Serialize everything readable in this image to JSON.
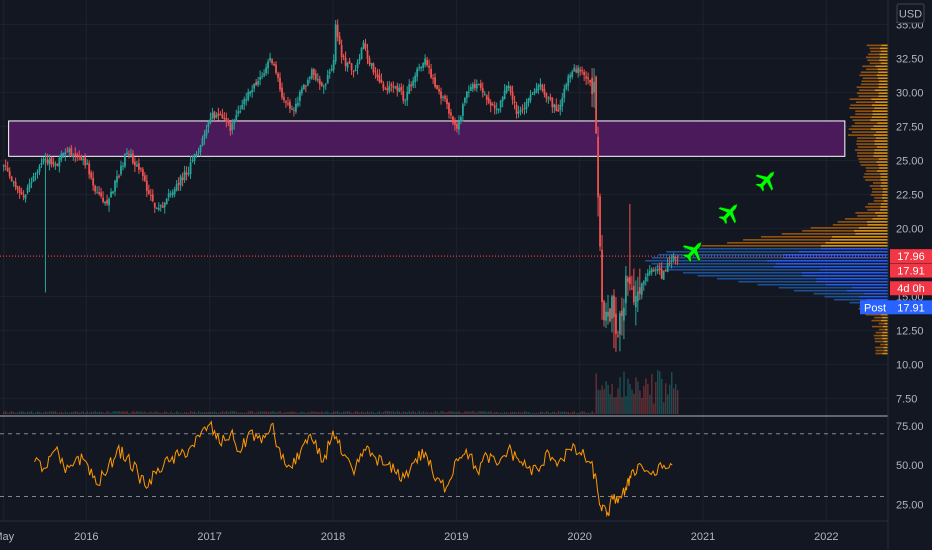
{
  "chart_data": [
    {
      "type": "candlestick",
      "currency": "USD",
      "ylim": [
        6.5,
        36.5
      ],
      "y_ticks": [
        "35.00",
        "32.50",
        "30.00",
        "27.50",
        "25.00",
        "22.50",
        "20.00",
        "15.00",
        "12.50",
        "10.00",
        "7.50"
      ],
      "x_ticks": [
        "May",
        "2016",
        "2017",
        "2018",
        "2019",
        "2020",
        "2021",
        "2022"
      ],
      "x_tick_years": [
        2015.33,
        2016.0,
        2017.0,
        2018.0,
        2019.0,
        2020.0,
        2021.0,
        2022.0
      ],
      "xlim": [
        2015.3,
        2022.5
      ],
      "price_path": [
        [
          2015.33,
          24.6
        ],
        [
          2015.42,
          23.0
        ],
        [
          2015.5,
          22.3
        ],
        [
          2015.58,
          24.0
        ],
        [
          2015.67,
          25.2
        ],
        [
          2015.75,
          24.5
        ],
        [
          2015.83,
          25.8
        ],
        [
          2015.92,
          25.4
        ],
        [
          2016.0,
          24.8
        ],
        [
          2016.08,
          22.5
        ],
        [
          2016.17,
          21.8
        ],
        [
          2016.25,
          23.8
        ],
        [
          2016.33,
          25.6
        ],
        [
          2016.42,
          24.6
        ],
        [
          2016.5,
          22.8
        ],
        [
          2016.58,
          21.3
        ],
        [
          2016.67,
          22.4
        ],
        [
          2016.75,
          23.5
        ],
        [
          2016.83,
          24.3
        ],
        [
          2016.92,
          26.0
        ],
        [
          2017.0,
          28.2
        ],
        [
          2017.08,
          28.5
        ],
        [
          2017.17,
          27.4
        ],
        [
          2017.25,
          28.8
        ],
        [
          2017.33,
          30.2
        ],
        [
          2017.42,
          31.0
        ],
        [
          2017.5,
          32.6
        ],
        [
          2017.58,
          30.0
        ],
        [
          2017.67,
          28.6
        ],
        [
          2017.75,
          30.2
        ],
        [
          2017.83,
          31.5
        ],
        [
          2017.92,
          30.6
        ],
        [
          2018.0,
          31.6
        ],
        [
          2018.02,
          34.8
        ],
        [
          2018.08,
          32.4
        ],
        [
          2018.17,
          31.6
        ],
        [
          2018.25,
          33.5
        ],
        [
          2018.33,
          31.5
        ],
        [
          2018.42,
          30.1
        ],
        [
          2018.5,
          30.7
        ],
        [
          2018.58,
          29.5
        ],
        [
          2018.67,
          31.5
        ],
        [
          2018.75,
          32.5
        ],
        [
          2018.83,
          30.2
        ],
        [
          2018.92,
          29.2
        ],
        [
          2019.0,
          27.2
        ],
        [
          2019.08,
          29.8
        ],
        [
          2019.17,
          30.8
        ],
        [
          2019.25,
          29.5
        ],
        [
          2019.33,
          28.7
        ],
        [
          2019.42,
          30.5
        ],
        [
          2019.5,
          28.3
        ],
        [
          2019.58,
          29.4
        ],
        [
          2019.67,
          30.8
        ],
        [
          2019.75,
          29.5
        ],
        [
          2019.83,
          28.5
        ],
        [
          2019.92,
          31.5
        ],
        [
          2020.0,
          31.6
        ],
        [
          2020.08,
          30.7
        ],
        [
          2020.12,
          30.0
        ],
        [
          2020.15,
          22.0
        ],
        [
          2020.18,
          15.0
        ],
        [
          2020.22,
          12.8
        ],
        [
          2020.27,
          14.5
        ],
        [
          2020.3,
          12.4
        ],
        [
          2020.35,
          14.0
        ],
        [
          2020.38,
          16.2
        ],
        [
          2020.42,
          15.0
        ],
        [
          2020.46,
          14.6
        ],
        [
          2020.5,
          15.6
        ],
        [
          2020.55,
          16.8
        ],
        [
          2020.62,
          17.2
        ],
        [
          2020.67,
          16.5
        ],
        [
          2020.72,
          17.5
        ],
        [
          2020.75,
          17.9
        ]
      ],
      "candle_count": 340,
      "wick_extremes": [
        {
          "year": 2015.67,
          "low": 15.3
        },
        {
          "year": 2020.4,
          "high": 21.8
        },
        {
          "year": 2020.28,
          "low": 11.2
        }
      ],
      "resistance_zone": {
        "y_low": 25.3,
        "y_high": 27.9,
        "x_start": 2015.37,
        "x_end": 2022.15,
        "fill": "#4a1a5a",
        "stroke": "#ffffff"
      },
      "hline": {
        "value": 17.96,
        "color": "#f23645",
        "style": "dotted"
      },
      "price_tags": [
        {
          "label": "17.96",
          "value": 17.96,
          "bg": "#f23645"
        },
        {
          "label": "17.91",
          "value": 16.9,
          "bg": "#f23645"
        },
        {
          "label": "4d 0h",
          "value": 15.6,
          "bg": "#f23645"
        },
        {
          "label": "Post",
          "value": 14.2,
          "bg": "#2962ff",
          "secondary": "17.91"
        }
      ],
      "annotations": [
        {
          "type": "airplane-icon",
          "year": 2020.93,
          "value": 18.4,
          "color": "#00ff00"
        },
        {
          "type": "airplane-icon",
          "year": 2021.22,
          "value": 21.2,
          "color": "#00ff00"
        },
        {
          "type": "airplane-icon",
          "year": 2021.52,
          "value": 23.6,
          "color": "#00ff00"
        }
      ],
      "colors": {
        "up": "#26a69a",
        "down": "#ef5350",
        "background": "#131722",
        "grid": "#2a2e39",
        "axis_text": "#b2b5be"
      }
    },
    {
      "type": "line",
      "indicator": "RSI",
      "ylim": [
        15,
        80
      ],
      "y_ticks": [
        "75.00",
        "50.00",
        "25.00"
      ],
      "bands": [
        70,
        30
      ],
      "color": "#ff9800",
      "x": [
        2015.58,
        2015.67,
        2015.75,
        2015.83,
        2015.92,
        2016.0,
        2016.08,
        2016.17,
        2016.25,
        2016.33,
        2016.42,
        2016.5,
        2016.58,
        2016.67,
        2016.75,
        2016.83,
        2016.92,
        2017.0,
        2017.08,
        2017.17,
        2017.25,
        2017.33,
        2017.42,
        2017.5,
        2017.58,
        2017.67,
        2017.75,
        2017.83,
        2017.92,
        2018.0,
        2018.08,
        2018.17,
        2018.25,
        2018.33,
        2018.42,
        2018.5,
        2018.58,
        2018.67,
        2018.75,
        2018.83,
        2018.92,
        2019.0,
        2019.08,
        2019.17,
        2019.25,
        2019.33,
        2019.42,
        2019.5,
        2019.58,
        2019.67,
        2019.75,
        2019.83,
        2019.92,
        2020.0,
        2020.08,
        2020.12,
        2020.17,
        2020.22,
        2020.27,
        2020.33,
        2020.38,
        2020.42,
        2020.5,
        2020.58,
        2020.67,
        2020.75
      ],
      "values": [
        52,
        48,
        60,
        45,
        55,
        52,
        38,
        46,
        60,
        55,
        44,
        36,
        48,
        52,
        56,
        60,
        68,
        76,
        64,
        70,
        58,
        72,
        64,
        76,
        54,
        48,
        62,
        66,
        52,
        72,
        56,
        44,
        60,
        56,
        50,
        46,
        42,
        54,
        58,
        40,
        36,
        54,
        60,
        46,
        56,
        50,
        60,
        54,
        48,
        46,
        58,
        52,
        60,
        58,
        52,
        44,
        24,
        18,
        28,
        30,
        34,
        46,
        50,
        44,
        48,
        50
      ]
    }
  ]
}
